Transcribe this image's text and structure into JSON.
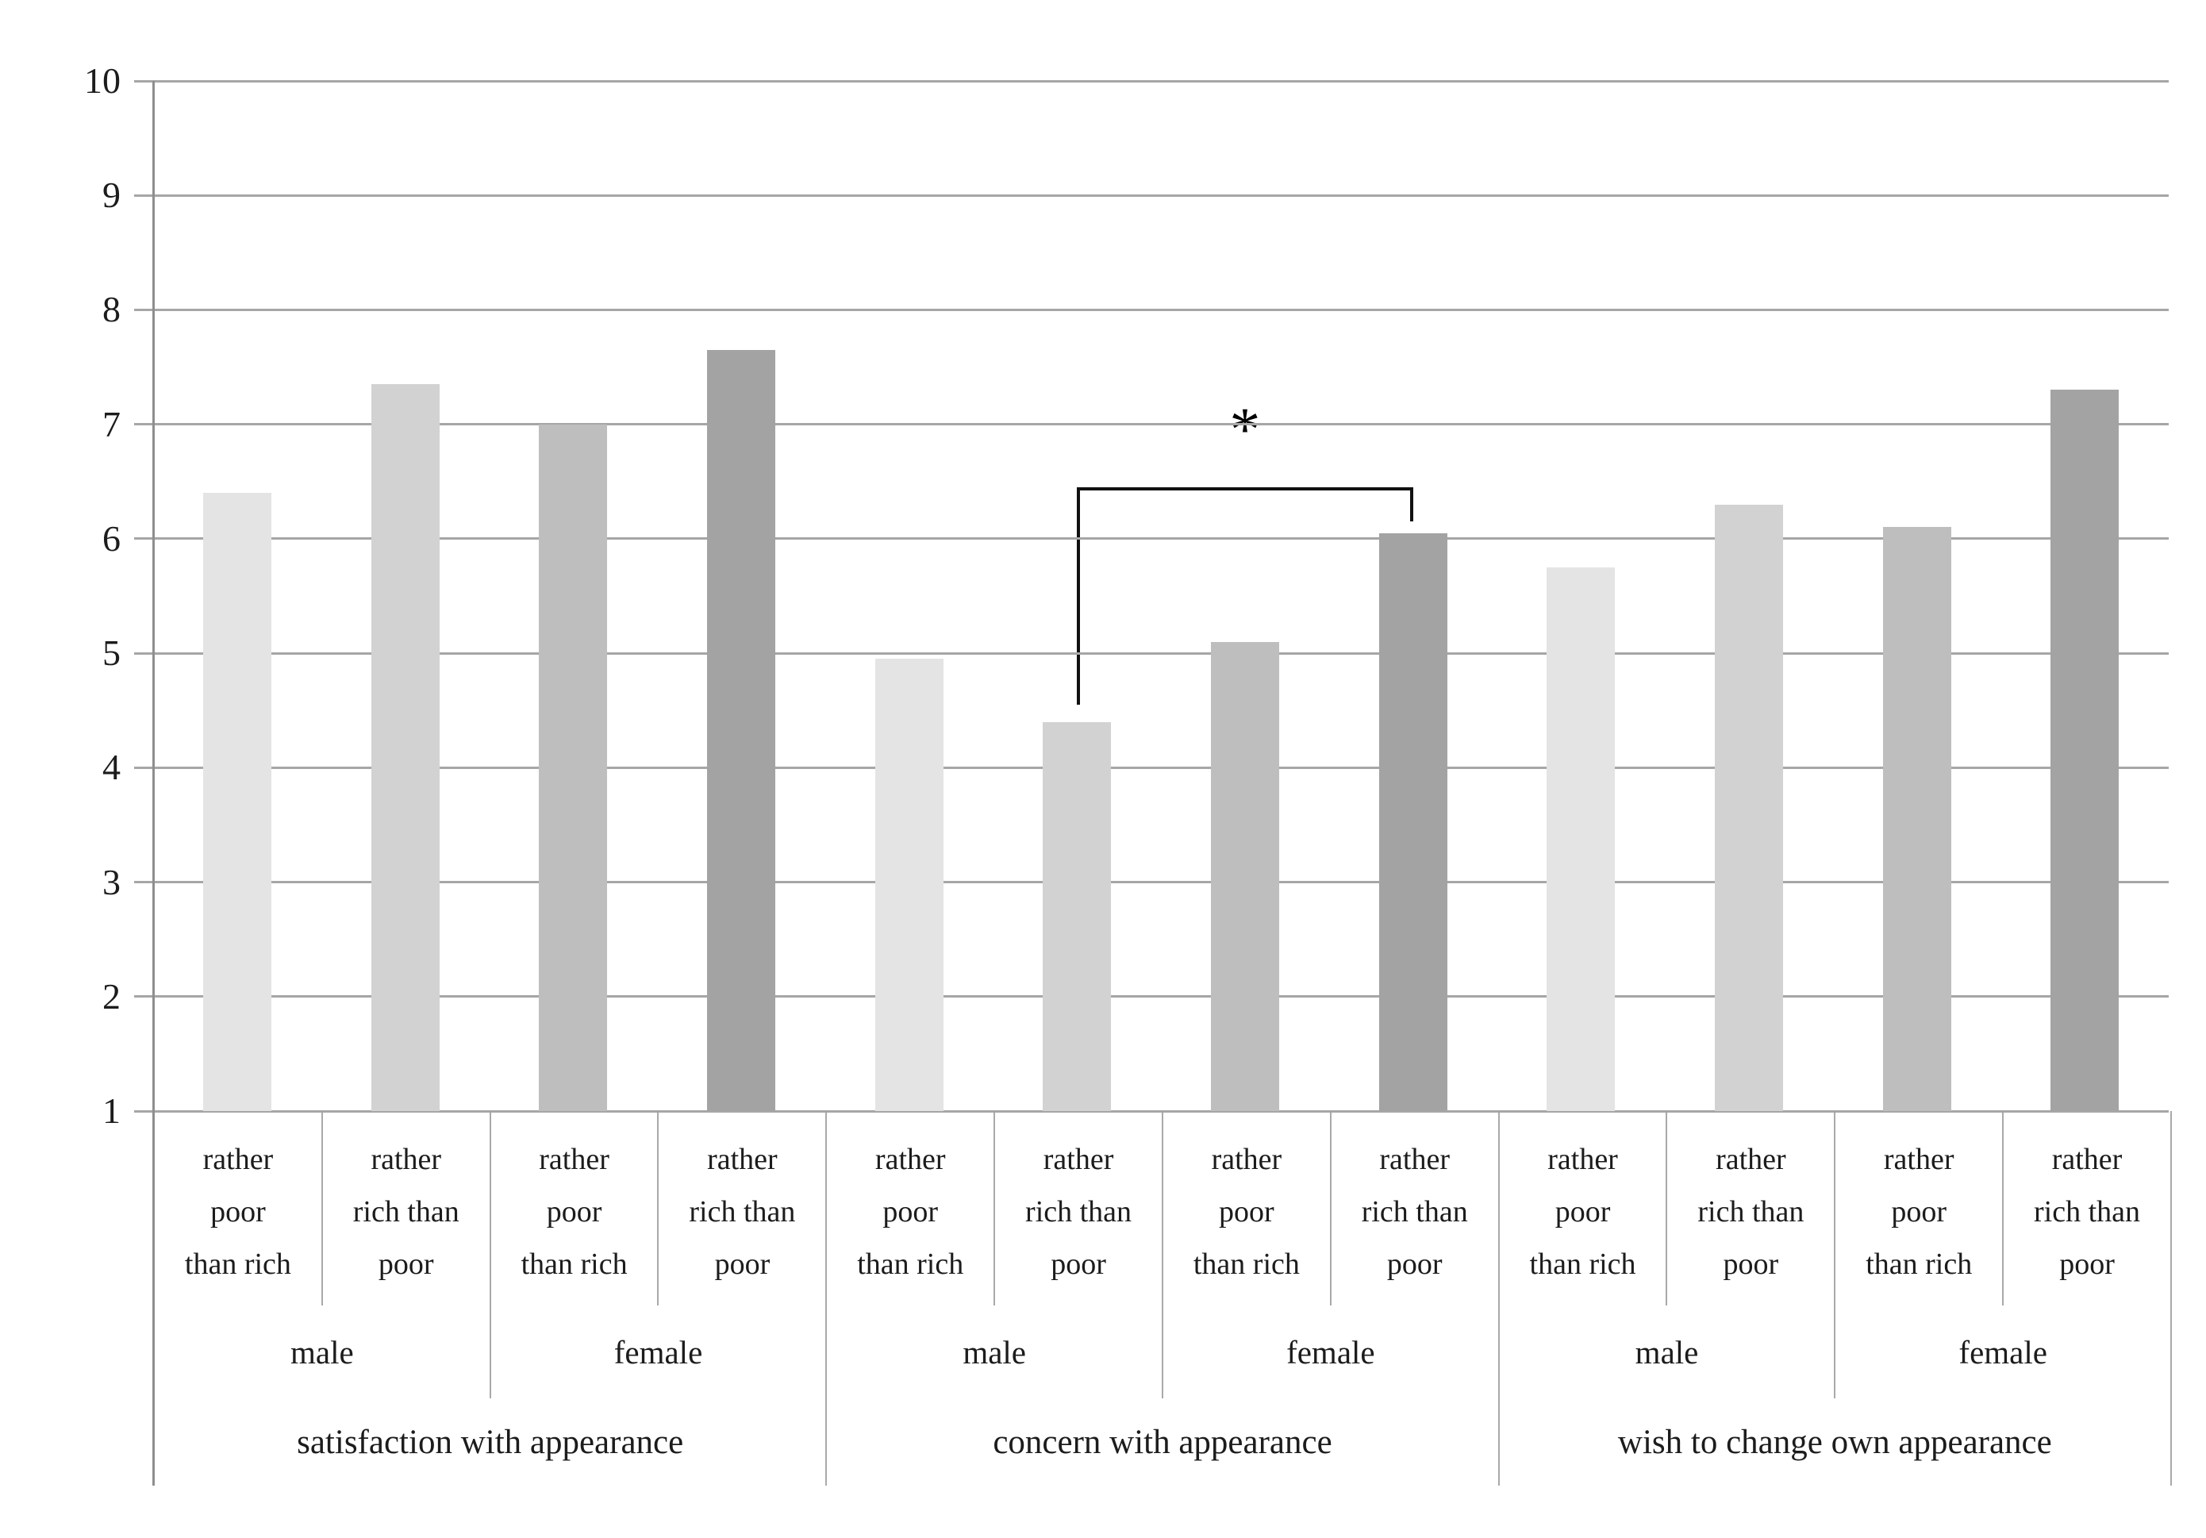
{
  "figure": {
    "background": "#ffffff",
    "text_color": "#1c1c1c",
    "gridline_color": "#a6a6a6",
    "axis_color": "#8e8e8e",
    "border_color": "#a9a9a9",
    "bracket_color": "#111111"
  },
  "chart_data": {
    "type": "bar",
    "title": "",
    "xlabel": "",
    "ylabel": "",
    "ylim": [
      1,
      10
    ],
    "yticks": [
      "10",
      "9",
      "8",
      "7",
      "6",
      "5",
      "4",
      "3",
      "2",
      "1"
    ],
    "grid": "horizontal",
    "legend": "none",
    "bar_palette": [
      "#e4e4e4",
      "#d2d2d2",
      "#bebebe",
      "#a3a3a3"
    ],
    "values": [
      6.4,
      7.35,
      7.0,
      7.65,
      4.95,
      4.4,
      5.1,
      6.05,
      5.75,
      6.3,
      6.1,
      7.3
    ],
    "level1_labels": [
      "rather\npoor\nthan rich",
      "rather\nrich than\npoor",
      "rather\npoor\nthan rich",
      "rather\nrich than\npoor",
      "rather\npoor\nthan rich",
      "rather\nrich than\npoor",
      "rather\npoor\nthan rich",
      "rather\nrich than\npoor",
      "rather\npoor\nthan rich",
      "rather\nrich than\npoor",
      "rather\npoor\nthan rich",
      "rather\nrich than\npoor"
    ],
    "level2_labels": [
      "male",
      "female",
      "male",
      "female",
      "male",
      "female"
    ],
    "level3_labels": [
      "satisfaction with appearance",
      "concern with appearance",
      "wish to change own appearance"
    ],
    "series_structure": [
      {
        "group": "satisfaction with appearance",
        "male": {
          "rather poor than rich": 6.4,
          "rather rich than poor": 7.35
        },
        "female": {
          "rather poor than rich": 7.0,
          "rather rich than poor": 7.65
        }
      },
      {
        "group": "concern with appearance",
        "male": {
          "rather poor than rich": 4.95,
          "rather rich than poor": 4.4
        },
        "female": {
          "rather poor than rich": 5.1,
          "rather rich than poor": 6.05
        }
      },
      {
        "group": "wish to change own appearance",
        "male": {
          "rather poor than rich": 5.75,
          "rather rich than poor": 6.3
        },
        "female": {
          "rather poor than rich": 6.1,
          "rather rich than poor": 7.3
        }
      }
    ],
    "significance": {
      "label": "*",
      "from_bar": 6,
      "to_bar": 8,
      "bracket_value": 6.45,
      "left_leg_bottom_value": 4.55,
      "right_leg_bottom_value": 6.15,
      "star_value": 6.95
    }
  }
}
